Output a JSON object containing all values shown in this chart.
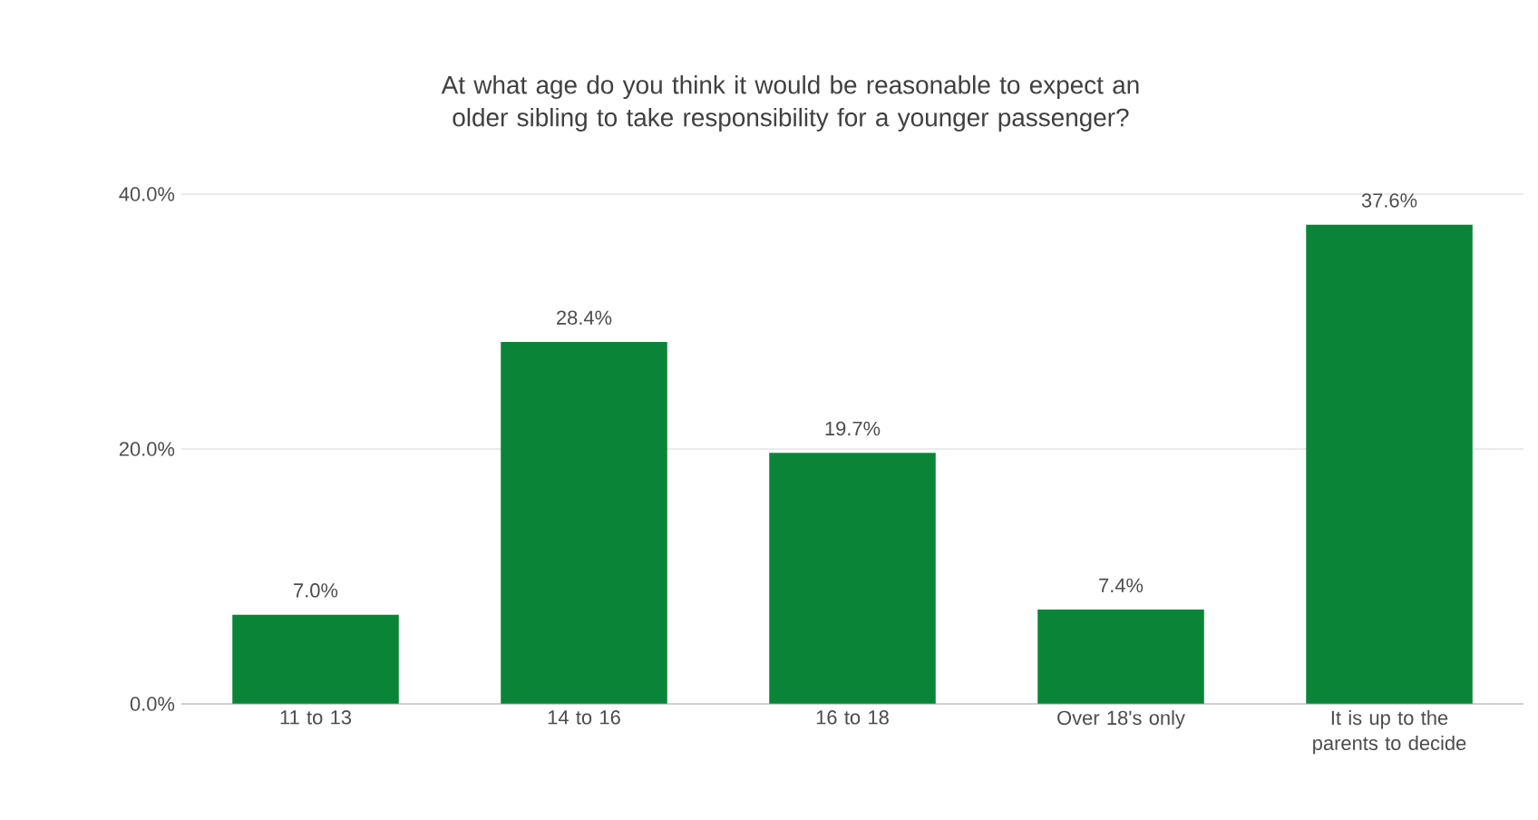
{
  "chart_data": {
    "type": "bar",
    "title": "At what age do you think it would be reasonable to expect an older sibling to take responsibility for a younger passenger?",
    "categories": [
      "11 to 13",
      "14 to 16",
      "16 to 18",
      "Over 18's only",
      "It is up to the parents to decide"
    ],
    "values": [
      7.0,
      28.4,
      19.7,
      7.4,
      37.6
    ],
    "value_labels": [
      "7.0%",
      "28.4%",
      "19.7%",
      "7.4%",
      "37.6%"
    ],
    "color": "#0a8537",
    "ylim": [
      0,
      40
    ],
    "yticks": [
      {
        "value": 0,
        "label": "0.0%"
      },
      {
        "value": 20,
        "label": "20.0%"
      },
      {
        "value": 40,
        "label": "40.0%"
      }
    ],
    "grid": "y"
  }
}
